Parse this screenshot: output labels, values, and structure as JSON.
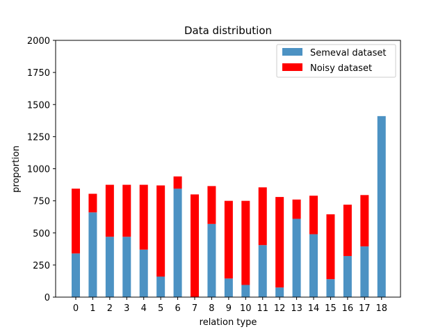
{
  "chart_data": {
    "type": "bar",
    "stacked": true,
    "title": "Data distribution",
    "xlabel": "relation type",
    "ylabel": "proportion",
    "ylim": [
      0,
      2000
    ],
    "yticks": [
      0,
      250,
      500,
      750,
      1000,
      1250,
      1500,
      1750,
      2000
    ],
    "categories": [
      "0",
      "1",
      "2",
      "3",
      "4",
      "5",
      "6",
      "7",
      "8",
      "9",
      "10",
      "11",
      "12",
      "13",
      "14",
      "15",
      "16",
      "17",
      "18"
    ],
    "series": [
      {
        "name": "Semeval dataset",
        "color": "#4c92c3",
        "values": [
          340,
          660,
          470,
          470,
          370,
          160,
          845,
          0,
          570,
          145,
          95,
          405,
          75,
          610,
          490,
          140,
          320,
          395,
          1410
        ]
      },
      {
        "name": "Noisy dataset",
        "color": "#ff0000",
        "values": [
          505,
          145,
          405,
          405,
          505,
          710,
          95,
          800,
          295,
          605,
          655,
          450,
          705,
          150,
          300,
          505,
          400,
          400,
          0
        ]
      }
    ],
    "legend_position": "top-right",
    "grid": false
  }
}
